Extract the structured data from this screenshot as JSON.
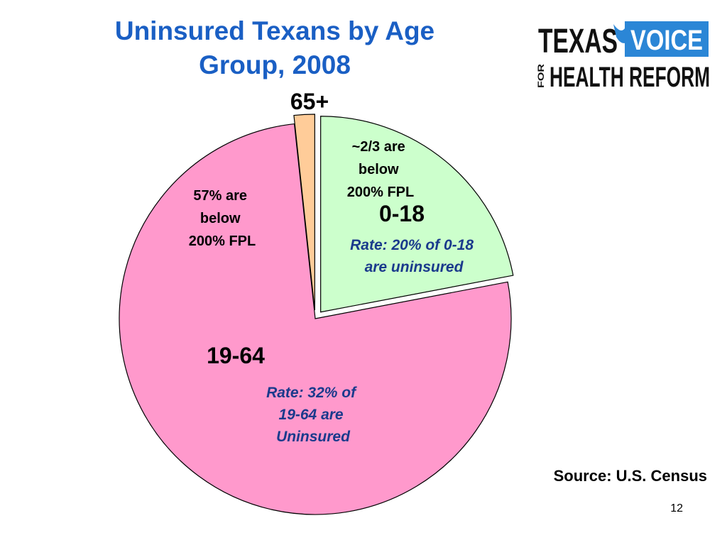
{
  "title": {
    "line1": "Uninsured Texans by Age",
    "line2": "Group, 2008"
  },
  "logo": {
    "word_texas": "TEXAS",
    "word_voice": "VOICE",
    "word_for": "FOR",
    "word_health_reform": "HEALTH REFORM",
    "colors": {
      "ink": "#111111",
      "voice_bg": "#2b86d6",
      "voice_text": "#ffffff"
    }
  },
  "chart_data": {
    "type": "pie",
    "title": "Uninsured Texans by Age Group, 2008",
    "slices": [
      {
        "label": "0-18",
        "value": 22,
        "color": "#ccffcc",
        "exploded": true,
        "note": "~2/3 are below 200% FPL",
        "rate_text": "Rate: 20% of 0-18 are uninsured"
      },
      {
        "label": "19-64",
        "value": 76.3,
        "color": "#ff99cc",
        "exploded": false,
        "note": "57% are below 200% FPL",
        "rate_text": "Rate: 32% of 19-64 are Uninsured"
      },
      {
        "label": "65+",
        "value": 1.7,
        "color": "#ffcc99",
        "exploded": true,
        "note": "",
        "rate_text": ""
      }
    ],
    "legend": "none"
  },
  "annotations": {
    "age_0_18": "0-18",
    "note_0_18_lines": [
      "~2/3 are",
      "below",
      "200% FPL"
    ],
    "rate_0_18_lines": [
      "Rate: 20% of 0-18",
      "are uninsured"
    ],
    "age_19_64": "19-64",
    "note_19_64_lines": [
      "57% are",
      "below",
      "200% FPL"
    ],
    "rate_19_64_lines": [
      "Rate: 32% of",
      "19-64 are",
      "Uninsured"
    ],
    "age_65": "65+",
    "rate_color": "#1a3a8c"
  },
  "source": "Source: U.S. Census",
  "page_number": "12"
}
